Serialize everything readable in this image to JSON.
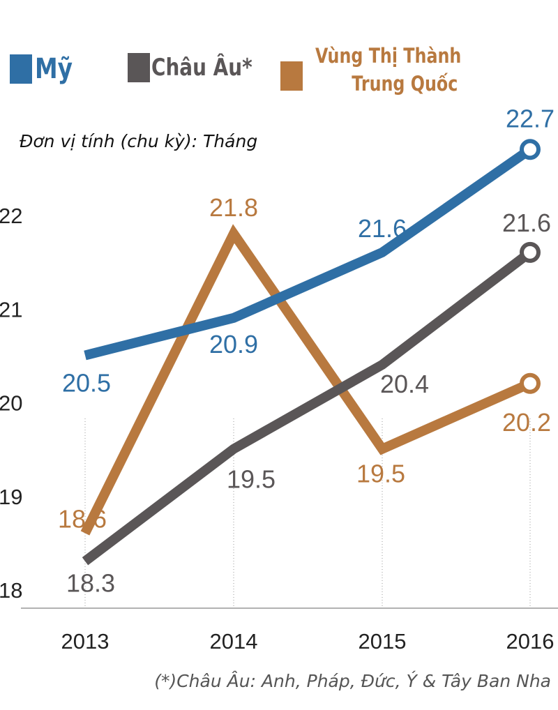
{
  "chart_data": {
    "type": "line",
    "categories": [
      "2013",
      "2014",
      "2015",
      "2016"
    ],
    "series": [
      {
        "name": "Mỹ",
        "color": "#2f6fa5",
        "values": [
          20.5,
          20.9,
          21.6,
          22.7
        ]
      },
      {
        "name": "Châu Âu*",
        "color": "#5a5657",
        "values": [
          18.3,
          19.5,
          20.4,
          21.6
        ]
      },
      {
        "name": "Vùng Thị Thành Trung Quốc",
        "color": "#b8793f",
        "values": [
          18.6,
          21.8,
          19.5,
          20.2
        ]
      }
    ],
    "y_ticks": [
      "18",
      "19",
      "20",
      "21",
      "22"
    ],
    "ylim": [
      18,
      22.7
    ],
    "ylabel": "Đơn vị tính (chu kỳ): Tháng",
    "legend": {
      "placement": "top",
      "line1_china": "Vùng Thị Thành",
      "line2_china": "Trung Quốc"
    },
    "footnote": "(*)Châu Âu: Anh, Pháp, Đức, Ý & Tây Ban Nha",
    "grid": "vertical dotted"
  }
}
